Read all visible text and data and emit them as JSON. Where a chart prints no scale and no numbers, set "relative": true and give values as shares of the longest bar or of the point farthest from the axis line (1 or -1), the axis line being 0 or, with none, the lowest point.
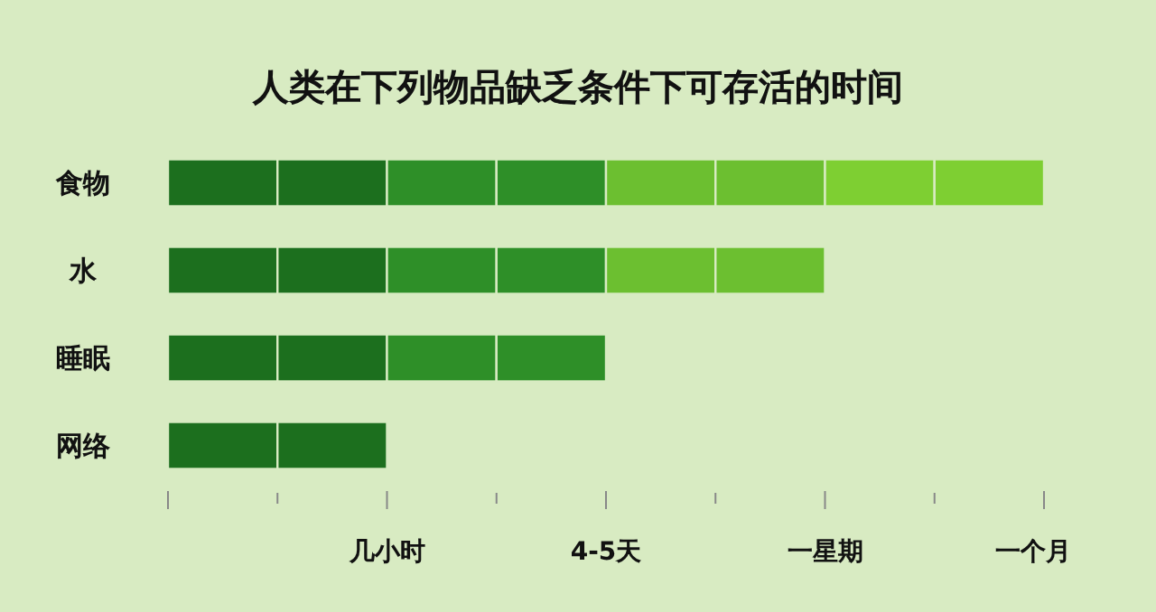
{
  "chart_data": {
    "type": "bar",
    "orientation": "horizontal",
    "stacked": true,
    "relative": true,
    "title": "人类在下列物品缺乏条件下可存活的时间",
    "categories": [
      "食物",
      "水",
      "睡眠",
      "网络"
    ],
    "series": [
      {
        "color": "#1c6f1e",
        "values": [
          0.125,
          0.125,
          0.125,
          0.125
        ]
      },
      {
        "color": "#1c6f1e",
        "values": [
          0.125,
          0.125,
          0.125,
          0.125
        ]
      },
      {
        "color": "#2e8f28",
        "values": [
          0.125,
          0.125,
          0.125,
          null
        ]
      },
      {
        "color": "#2e8f28",
        "values": [
          0.125,
          0.125,
          0.125,
          null
        ]
      },
      {
        "color": "#6cbf30",
        "values": [
          0.125,
          0.125,
          null,
          null
        ]
      },
      {
        "color": "#6cbf30",
        "values": [
          0.125,
          0.125,
          null,
          null
        ]
      },
      {
        "color": "#7ecf32",
        "values": [
          0.125,
          null,
          null,
          null
        ]
      },
      {
        "color": "#7ecf32",
        "values": [
          0.125,
          null,
          null,
          null
        ]
      }
    ],
    "annotations": [
      "几小时",
      "4-5天",
      "一星期",
      "一个月"
    ]
  }
}
